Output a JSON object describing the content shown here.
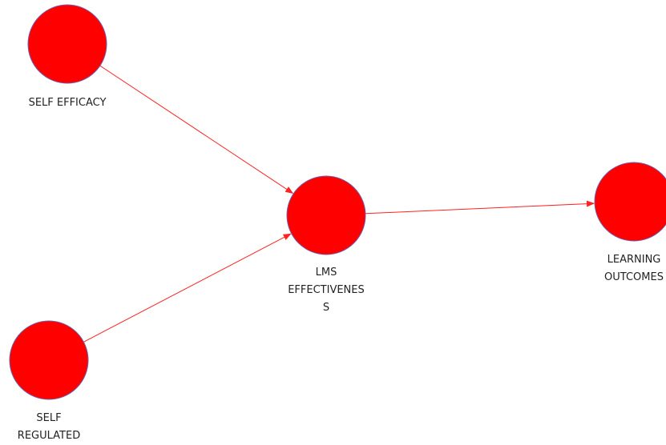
{
  "colors": {
    "node_fill": "#ff0000",
    "node_stroke": "#6f5fa8",
    "edge": "#ff2222",
    "label_text": "#222222"
  },
  "nodes": [
    {
      "id": "self-efficacy",
      "label": "SELF EFFICACY"
    },
    {
      "id": "self-regulated",
      "label": "SELF\nREGULATED"
    },
    {
      "id": "lms-effectiveness",
      "label": "LMS\nEFFECTIVENES\nS"
    },
    {
      "id": "learning-outcomes",
      "label": "LEARNING\nOUTCOMES"
    }
  ],
  "edges": [
    {
      "from": "self-efficacy",
      "to": "lms-effectiveness"
    },
    {
      "from": "self-regulated",
      "to": "lms-effectiveness"
    },
    {
      "from": "lms-effectiveness",
      "to": "learning-outcomes"
    }
  ]
}
